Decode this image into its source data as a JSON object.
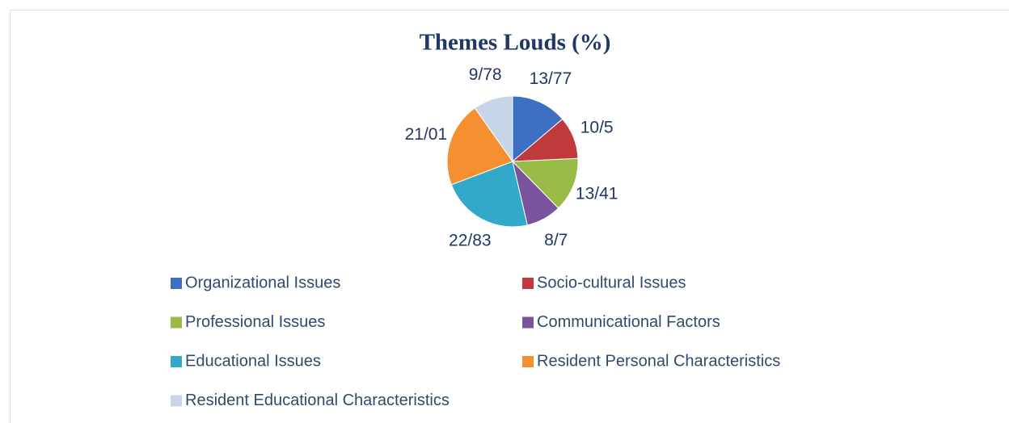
{
  "chart_data": {
    "type": "pie",
    "title": "Themes Louds (%)",
    "categories": [
      "Organizational Issues",
      "Socio-cultural Issues",
      "Professional Issues",
      "Communicational Factors",
      "Educational Issues",
      "Resident Personal Characteristics",
      "Resident Educational Characteristics"
    ],
    "values": [
      13.77,
      10.5,
      13.41,
      8.7,
      22.83,
      21.01,
      9.78
    ],
    "value_labels": [
      "13/77",
      "10/5",
      "13/41",
      "8/7",
      "22/83",
      "21/01",
      "9/78"
    ],
    "colors": [
      "#3d6fc2",
      "#c0393b",
      "#98bb45",
      "#7a539f",
      "#33a9c9",
      "#f58f2f",
      "#c7d5e9"
    ],
    "legend": "bottom"
  }
}
